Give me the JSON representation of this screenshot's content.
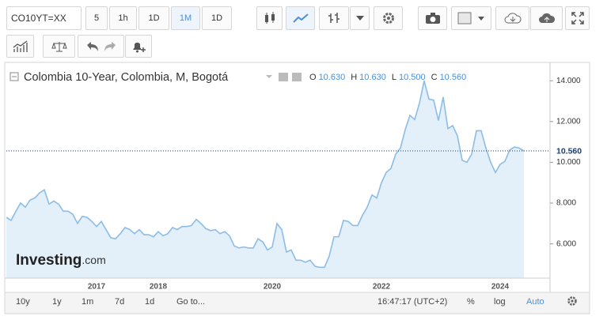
{
  "toolbar": {
    "symbol": "CO10YT=XX",
    "intervals": [
      "5",
      "1h",
      "1D",
      "1M",
      "1D"
    ]
  },
  "bottom_bar": {
    "ranges": [
      "10y",
      "1y",
      "1m",
      "7d",
      "1d"
    ],
    "goto": "Go to...",
    "time": "16:47:17 (UTC+2)",
    "percent": "%",
    "log": "log",
    "auto": "Auto"
  },
  "chart_data": {
    "type": "area",
    "title": "Colombia 10-Year, Colombia, M, Bogotá",
    "ohlc": [
      {
        "key": "O",
        "label": "10.630"
      },
      {
        "key": "H",
        "label": "10.630"
      },
      {
        "key": "L",
        "label": "10.500"
      },
      {
        "key": "C",
        "label": "10.560"
      }
    ],
    "logo": [
      "Investing",
      ".com"
    ],
    "color": "#8bbde6",
    "fill": "#e3eff9",
    "price_line": {
      "value": 10.56,
      "label": "10.560"
    },
    "categories": [
      null,
      null,
      null,
      null,
      null,
      null,
      null,
      null,
      null,
      null,
      null,
      null,
      null,
      null,
      null,
      null,
      null,
      null,
      null,
      "2017",
      null,
      null,
      null,
      null,
      null,
      null,
      null,
      null,
      null,
      null,
      null,
      null,
      "2018",
      null,
      null,
      null,
      null,
      null,
      null,
      null,
      null,
      null,
      null,
      null,
      null,
      null,
      null,
      null,
      null,
      null,
      null,
      null,
      null,
      null,
      null,
      null,
      "2020",
      null,
      null,
      null,
      null,
      null,
      null,
      null,
      null,
      null,
      null,
      null,
      null,
      null,
      null,
      null,
      null,
      null,
      null,
      null,
      null,
      null,
      null,
      "2022",
      null,
      null,
      null,
      null,
      null,
      null,
      null,
      null,
      null,
      null,
      null,
      null,
      null,
      null,
      null,
      null,
      null,
      null,
      null,
      null,
      null,
      null,
      null,
      null,
      "2024",
      null,
      null,
      null,
      null,
      null
    ],
    "values": [
      7.3,
      7.15,
      7.6,
      8.0,
      7.8,
      8.15,
      8.25,
      8.5,
      8.65,
      7.95,
      8.1,
      7.95,
      7.6,
      7.6,
      7.45,
      7.0,
      7.35,
      7.3,
      7.1,
      6.85,
      7.1,
      6.7,
      6.3,
      6.25,
      6.5,
      6.8,
      6.7,
      6.5,
      6.7,
      6.45,
      6.45,
      6.35,
      6.6,
      6.4,
      6.5,
      6.8,
      6.7,
      6.85,
      6.85,
      6.9,
      7.2,
      7.0,
      6.75,
      6.65,
      6.7,
      6.5,
      6.6,
      6.4,
      5.9,
      5.8,
      5.85,
      5.8,
      5.8,
      6.25,
      6.1,
      5.7,
      5.85,
      7.0,
      6.7,
      5.6,
      5.7,
      5.2,
      5.2,
      5.1,
      5.2,
      4.9,
      4.85,
      4.85,
      5.4,
      6.35,
      6.35,
      7.15,
      7.1,
      6.9,
      6.9,
      7.4,
      7.8,
      8.4,
      8.25,
      9.0,
      9.5,
      9.7,
      10.4,
      10.7,
      11.6,
      12.3,
      12.1,
      12.9,
      14.0,
      13.1,
      13.05,
      12.05,
      13.2,
      11.65,
      11.8,
      11.3,
      10.1,
      10.0,
      10.4,
      11.55,
      11.55,
      10.7,
      10.0,
      9.5,
      9.9,
      10.05,
      10.6,
      10.75,
      10.7,
      10.56
    ],
    "ylim": [
      4.32,
      14.86
    ],
    "yticks": [
      {
        "value": 6,
        "label": "6.000"
      },
      {
        "value": 8,
        "label": "8.000"
      },
      {
        "value": 10,
        "label": "10.000"
      },
      {
        "value": 12,
        "label": "12.000"
      },
      {
        "value": 14,
        "label": "14.000"
      }
    ]
  }
}
